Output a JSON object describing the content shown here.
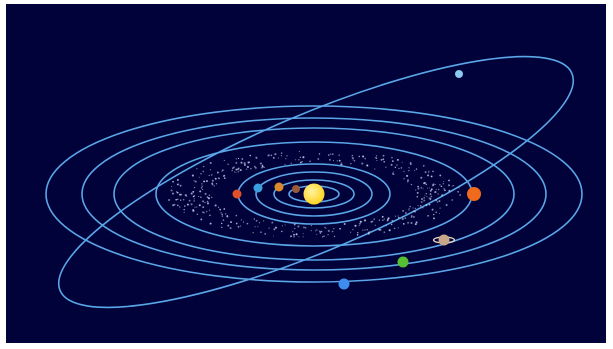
{
  "colors": {
    "space": "#02023a",
    "orbit": "#5aa6e8",
    "belt": "#b9c9e6",
    "sun": "#ffd21a",
    "sun_glow": "#fff2a0"
  },
  "sun": {
    "name": "sun",
    "color": "#ffd21a"
  },
  "planets": [
    {
      "name": "mercury",
      "color": "#9a5a3a",
      "orbit_index": 0
    },
    {
      "name": "venus",
      "color": "#d98a2b",
      "orbit_index": 1
    },
    {
      "name": "earth",
      "color": "#3a9ee0",
      "orbit_index": 2
    },
    {
      "name": "mars",
      "color": "#e0502a",
      "orbit_index": 3
    },
    {
      "name": "jupiter",
      "color": "#f06a1e",
      "orbit_index": 4
    },
    {
      "name": "saturn",
      "color": "#c8a888",
      "orbit_index": 5,
      "ringed": true
    },
    {
      "name": "uranus",
      "color": "#55c032",
      "orbit_index": 6
    },
    {
      "name": "neptune",
      "color": "#3d8cf0",
      "orbit_index": 7
    },
    {
      "name": "comet",
      "color": "#8cc8f0",
      "orbit_index": 8
    }
  ],
  "asteroid_belt": {
    "name": "asteroid-belt",
    "color": "#b9c9e6"
  }
}
